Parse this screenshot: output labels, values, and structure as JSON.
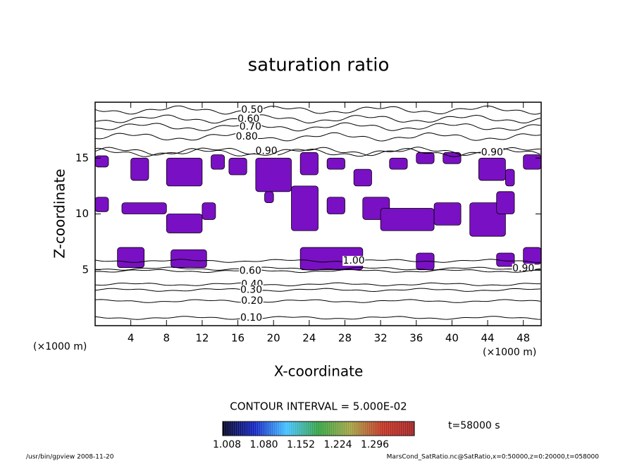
{
  "chart_data": {
    "type": "contour",
    "title": "saturation ratio",
    "x_label": "X-coordinate",
    "y_label": "Z-coordinate",
    "x_unit": "(×1000 m)",
    "y_unit": "(×1000 m)",
    "xlim": [
      0,
      50
    ],
    "ylim": [
      0,
      20
    ],
    "xticks": [
      4,
      8,
      12,
      16,
      20,
      24,
      28,
      32,
      36,
      40,
      44,
      48
    ],
    "yticks": [
      5,
      10,
      15
    ],
    "contour_interval": "CONTOUR INTERVAL = 5.000E-02",
    "contours": [
      {
        "level": {
          "value": 0.5,
          "label": "0.50"
        },
        "z": 19.3,
        "label_x": 17.6
      },
      {
        "level": {
          "value": 0.6,
          "label": "0.60"
        },
        "z": 18.5,
        "label_x": 17.2
      },
      {
        "level": {
          "value": 0.7,
          "label": "0.70"
        },
        "z": 17.8,
        "label_x": 17.4
      },
      {
        "level": {
          "value": 0.8,
          "label": "0.80"
        },
        "z": 16.9,
        "label_x": 17.0
      },
      {
        "level": {
          "value": 0.9,
          "label": "0.90"
        },
        "z": 15.6,
        "label_x": 19.2
      },
      {
        "level": {
          "value": 0.9,
          "label": "0.90"
        },
        "z": 15.5,
        "label_x": 44.5
      },
      {
        "level": {
          "value": 1.0,
          "label": "1.00"
        },
        "z": 5.8,
        "label_x": 29.0
      },
      {
        "level": {
          "value": 0.9,
          "label": "0.90"
        },
        "z": 5.1,
        "label_x": 48.0
      },
      {
        "level": {
          "value": 0.6,
          "label": "0.60"
        },
        "z": 4.9,
        "label_x": 17.4
      },
      {
        "level": {
          "value": 0.4,
          "label": "0.40"
        },
        "z": 3.7,
        "label_x": 17.6
      },
      {
        "level": {
          "value": 0.3,
          "label": "0.30"
        },
        "z": 3.2,
        "label_x": 17.5
      },
      {
        "level": {
          "value": 0.2,
          "label": "0.20"
        },
        "z": 2.2,
        "label_x": 17.6
      },
      {
        "level": {
          "value": 0.1,
          "label": "0.10"
        },
        "z": 0.7,
        "label_x": 17.5
      }
    ],
    "shade_color": "#7a10c4",
    "shaded": [
      [
        0,
        14.2,
        1.5,
        15.2
      ],
      [
        4,
        13,
        6,
        15
      ],
      [
        8,
        12.5,
        12,
        15
      ],
      [
        13,
        14,
        14.5,
        15.3
      ],
      [
        15,
        13.5,
        17,
        15
      ],
      [
        18,
        12,
        22,
        15
      ],
      [
        23,
        13.5,
        25,
        15.5
      ],
      [
        26,
        14,
        28,
        15
      ],
      [
        29,
        12.5,
        31,
        14
      ],
      [
        33,
        14,
        35,
        15
      ],
      [
        36,
        14.5,
        38,
        15.5
      ],
      [
        39,
        14.5,
        41,
        15.5
      ],
      [
        43,
        13,
        46,
        15
      ],
      [
        46,
        12.5,
        47,
        14
      ],
      [
        48,
        14,
        50,
        15.3
      ],
      [
        0,
        10.2,
        1.5,
        11.5
      ],
      [
        3,
        10,
        8,
        11
      ],
      [
        8,
        8.3,
        12,
        10
      ],
      [
        12,
        9.5,
        13.5,
        11
      ],
      [
        19,
        11,
        20,
        12
      ],
      [
        22,
        8.5,
        25,
        12.5
      ],
      [
        26,
        10,
        28,
        11.5
      ],
      [
        30,
        9.5,
        33,
        11.5
      ],
      [
        32,
        8.5,
        38,
        10.5
      ],
      [
        38,
        9,
        41,
        11
      ],
      [
        42,
        8,
        46,
        11
      ],
      [
        45,
        10,
        47,
        12
      ],
      [
        2.5,
        5.2,
        5.5,
        7
      ],
      [
        8.5,
        5.2,
        12.5,
        6.8
      ],
      [
        23,
        5,
        30,
        7
      ],
      [
        36,
        5,
        38,
        6.5
      ],
      [
        45,
        5.3,
        47,
        6.5
      ],
      [
        48,
        5.5,
        50,
        7
      ]
    ],
    "colorbar": {
      "colors": [
        "#000020",
        "#1020c0",
        "#40c0ff",
        "#30a040",
        "#a0a040",
        "#c03020",
        "#a02020"
      ],
      "ticks": [
        1.008,
        {
          "value": 1.08,
          "label": "1.080"
        },
        1.152,
        1.224,
        1.296
      ]
    },
    "time_label": "t=58000 s",
    "footer_left": "/usr/bin/gpview  2008-11-20",
    "footer_right": "MarsCond_SatRatio.nc@SatRatio,x=0:50000,z=0:20000,t=058000"
  }
}
